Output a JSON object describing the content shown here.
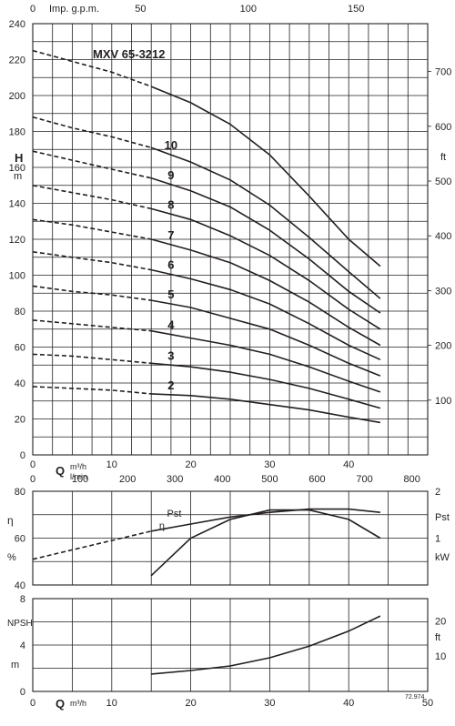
{
  "chart_data": [
    {
      "type": "line",
      "title": "MXV 65-3212",
      "ylabel": "H",
      "ylabel_unit": "m",
      "ylabel_right": "ft",
      "top_axis_label": "Imp. g.p.m.",
      "xlabel": "Q",
      "xlabel_units": [
        "m³/h",
        "l/min"
      ],
      "xlim": [
        0,
        50
      ],
      "ylim": [
        0,
        240
      ],
      "y_ticks": [
        0,
        20,
        40,
        60,
        80,
        100,
        120,
        140,
        160,
        180,
        200,
        220,
        240
      ],
      "y_right_ticks": [
        100,
        200,
        300,
        400,
        500,
        600,
        700
      ],
      "x_ticks": [
        0,
        10,
        20,
        30,
        40
      ],
      "x2_ticks": [
        0,
        100,
        200,
        300,
        400,
        500,
        600,
        700,
        800
      ],
      "top_ticks": [
        0,
        50,
        100,
        150
      ],
      "curves": [
        {
          "label": "",
          "x": [
            0,
            5,
            10,
            15,
            20,
            25,
            30,
            35,
            40,
            44
          ],
          "y": [
            225,
            219,
            213,
            205,
            196,
            184,
            167,
            144,
            120,
            105
          ]
        },
        {
          "label": "10",
          "x": [
            0,
            5,
            10,
            15,
            20,
            25,
            30,
            35,
            40,
            44
          ],
          "y": [
            188,
            182,
            177,
            171,
            163,
            153,
            139,
            121,
            102,
            87
          ]
        },
        {
          "label": "9",
          "x": [
            0,
            5,
            10,
            15,
            20,
            25,
            30,
            35,
            40,
            44
          ],
          "y": [
            169,
            164,
            159,
            154,
            147,
            138,
            125,
            109,
            91,
            79
          ]
        },
        {
          "label": "8",
          "x": [
            0,
            5,
            10,
            15,
            20,
            25,
            30,
            35,
            40,
            44
          ],
          "y": [
            150,
            146,
            142,
            137,
            131,
            122,
            111,
            97,
            81,
            70
          ]
        },
        {
          "label": "7",
          "x": [
            0,
            5,
            10,
            15,
            20,
            25,
            30,
            35,
            40,
            44
          ],
          "y": [
            131,
            128,
            124,
            120,
            114,
            107,
            97,
            85,
            71,
            61
          ]
        },
        {
          "label": "6",
          "x": [
            0,
            5,
            10,
            15,
            20,
            25,
            30,
            35,
            40,
            44
          ],
          "y": [
            113,
            110,
            107,
            103,
            98,
            92,
            84,
            73,
            61,
            53
          ]
        },
        {
          "label": "5",
          "x": [
            0,
            5,
            10,
            15,
            20,
            25,
            30,
            35,
            40,
            44
          ],
          "y": [
            94,
            91,
            89,
            86,
            82,
            76,
            70,
            61,
            51,
            44
          ]
        },
        {
          "label": "4",
          "x": [
            0,
            5,
            10,
            15,
            20,
            25,
            30,
            35,
            40,
            44
          ],
          "y": [
            75,
            73,
            71,
            69,
            65,
            61,
            56,
            49,
            41,
            35
          ]
        },
        {
          "label": "3",
          "x": [
            0,
            5,
            10,
            15,
            20,
            25,
            30,
            35,
            40,
            44
          ],
          "y": [
            56,
            55,
            53,
            51,
            49,
            46,
            42,
            37,
            31,
            26
          ]
        },
        {
          "label": "2",
          "x": [
            0,
            5,
            10,
            15,
            20,
            25,
            30,
            35,
            40,
            44
          ],
          "y": [
            38,
            37,
            36,
            34,
            33,
            31,
            28,
            25,
            21,
            18
          ]
        }
      ],
      "dashed_until_x": 15,
      "label_positions_x": 17.5
    },
    {
      "type": "line",
      "ylabel": "η",
      "ylabel_unit": "%",
      "ylabel_right": "Pst",
      "ylabel_right_unit": "kW",
      "ylim": [
        40,
        80
      ],
      "y_ticks": [
        40,
        60,
        80
      ],
      "y_right_ticks": [
        1,
        2
      ],
      "y_right_lim": [
        0,
        2
      ],
      "xlim": [
        0,
        50
      ],
      "series": [
        {
          "name": "Pst",
          "axis": "right",
          "x": [
            0,
            5,
            10,
            15,
            20,
            25,
            30,
            35,
            40,
            44
          ],
          "y": [
            0.55,
            0.75,
            0.95,
            1.15,
            1.3,
            1.45,
            1.55,
            1.62,
            1.62,
            1.55
          ],
          "dashed_until_x": 15
        },
        {
          "name": "η",
          "axis": "left",
          "x": [
            15,
            20,
            25,
            30,
            35,
            40,
            44
          ],
          "y": [
            44,
            60,
            68,
            72,
            72,
            68,
            60
          ]
        }
      ]
    },
    {
      "type": "line",
      "ylabel": "NPSH",
      "ylabel_unit": "m",
      "ylabel_right": "ft",
      "ylim": [
        0,
        8
      ],
      "y_ticks": [
        0,
        4,
        8
      ],
      "y_right_ticks": [
        10,
        20
      ],
      "xlabel": "Q",
      "xlabel_unit": "m³/h",
      "xlim": [
        0,
        50
      ],
      "x_ticks": [
        0,
        10,
        20,
        30,
        40,
        50
      ],
      "series": [
        {
          "name": "NPSH",
          "x": [
            15,
            20,
            25,
            30,
            35,
            40,
            44
          ],
          "y": [
            1.5,
            1.8,
            2.2,
            2.9,
            3.9,
            5.2,
            6.5
          ]
        }
      ]
    }
  ],
  "footer_code": "72.974"
}
